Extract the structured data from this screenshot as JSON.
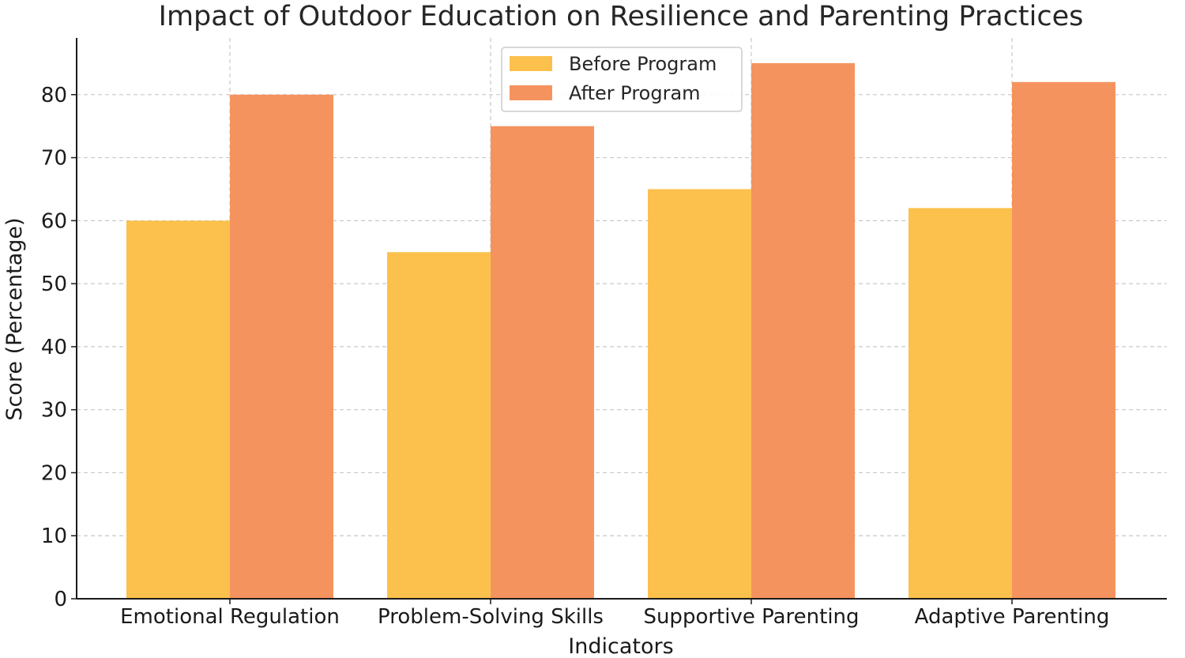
{
  "chart_data": {
    "type": "bar",
    "title": "Impact of Outdoor Education on Resilience and Parenting Practices",
    "xlabel": "Indicators",
    "ylabel": "Score (Percentage)",
    "categories": [
      "Emotional Regulation",
      "Problem-Solving Skills",
      "Supportive Parenting",
      "Adaptive Parenting"
    ],
    "series": [
      {
        "name": "Before Program",
        "values": [
          60,
          55,
          65,
          62
        ],
        "color": "#fbc14c"
      },
      {
        "name": "After Program",
        "values": [
          80,
          75,
          85,
          82
        ],
        "color": "#f5935f"
      }
    ],
    "ylim": [
      0,
      89
    ],
    "yticks": [
      0,
      10,
      20,
      30,
      40,
      50,
      60,
      70,
      80
    ],
    "grid": true,
    "legend": "top-center"
  }
}
